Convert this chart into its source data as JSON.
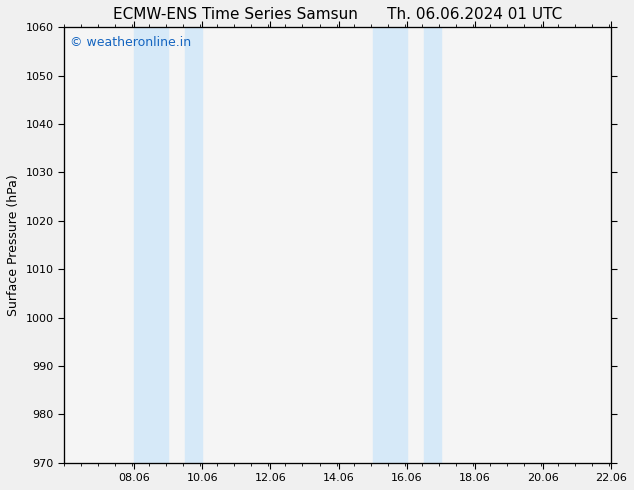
{
  "title_left": "ECMW-ENS Time Series Samsun",
  "title_right": "Th. 06.06.2024 01 UTC",
  "ylabel": "Surface Pressure (hPa)",
  "ylim": [
    970,
    1060
  ],
  "yticks": [
    970,
    980,
    990,
    1000,
    1010,
    1020,
    1030,
    1040,
    1050,
    1060
  ],
  "xlim": [
    6.0,
    22.06
  ],
  "xticks": [
    8.06,
    10.06,
    12.06,
    14.06,
    16.06,
    18.06,
    20.06,
    22.06
  ],
  "xticklabels": [
    "08.06",
    "10.06",
    "12.06",
    "14.06",
    "16.06",
    "18.06",
    "20.06",
    "22.06"
  ],
  "shaded_bands": [
    {
      "xmin": 8.06,
      "xmax": 9.06
    },
    {
      "xmin": 9.56,
      "xmax": 10.06
    },
    {
      "xmin": 15.06,
      "xmax": 16.06
    },
    {
      "xmin": 16.56,
      "xmax": 17.06
    }
  ],
  "band_color": "#d6e9f8",
  "band_alpha": 1.0,
  "watermark": "© weatheronline.in",
  "watermark_color": "#1565c0",
  "watermark_fontsize": 9,
  "bg_color": "#f0f0f0",
  "axes_bg_color": "#f5f5f5",
  "title_fontsize": 11,
  "tick_fontsize": 8,
  "ylabel_fontsize": 9
}
